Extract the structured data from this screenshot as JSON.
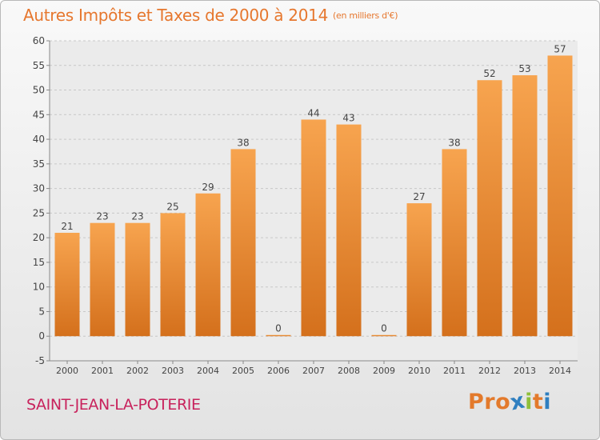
{
  "header": {
    "title": "Autres Impôts et Taxes de 2000 à 2014",
    "unit": "(en milliers d'€)"
  },
  "footer": {
    "commune": "SAINT-JEAN-LA-POTERIE",
    "logo": "Proxiti"
  },
  "colors": {
    "title": "#e6772e",
    "commune": "#c8225c",
    "bar_top": "#f7a44f",
    "bar_bottom": "#d4701c",
    "logo_letters": [
      "#e37a2c",
      "#e37a2c",
      "#e37a2c",
      "#2f7fc0",
      "#8fbf3a",
      "#e37a2c",
      "#2f7fc0"
    ]
  },
  "chart_data": {
    "type": "bar",
    "categories": [
      "2000",
      "2001",
      "2002",
      "2003",
      "2004",
      "2005",
      "2006",
      "2007",
      "2008",
      "2009",
      "2010",
      "2011",
      "2012",
      "2013",
      "2014"
    ],
    "values": [
      21,
      23,
      23,
      25,
      29,
      38,
      0,
      44,
      43,
      0,
      27,
      38,
      52,
      53,
      57
    ],
    "title": "Autres Impôts et Taxes de 2000 à 2014",
    "xlabel": "",
    "ylabel": "",
    "ylim": [
      -5,
      60
    ],
    "yticks": [
      -5,
      0,
      5,
      10,
      15,
      20,
      25,
      30,
      35,
      40,
      45,
      50,
      55,
      60
    ],
    "grid": true,
    "data_labels": true
  }
}
